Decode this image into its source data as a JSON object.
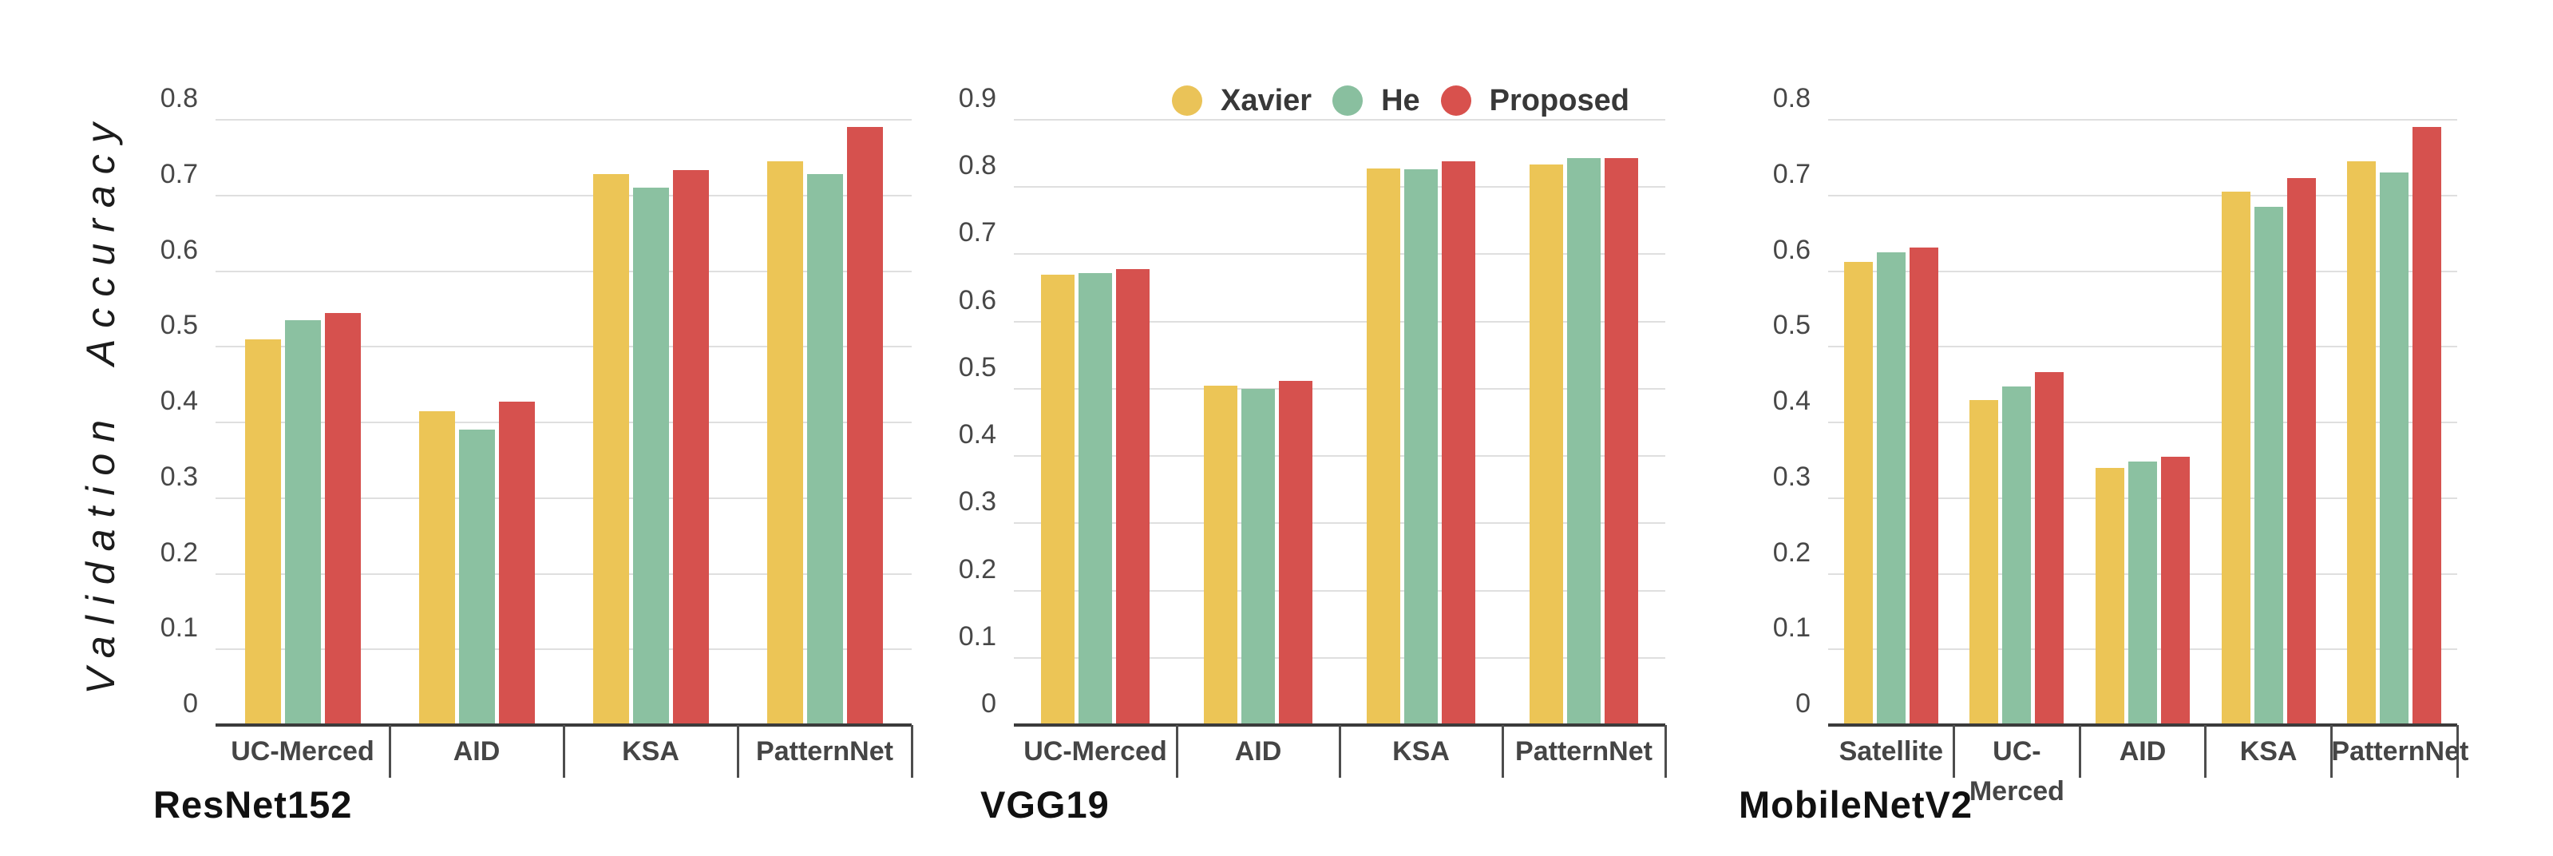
{
  "y_axis_title": "Validation Accuracy",
  "legend": {
    "items": [
      {
        "label": "Xavier",
        "color": "#EAC358"
      },
      {
        "label": "He",
        "color": "#89BF9F"
      },
      {
        "label": "Proposed",
        "color": "#D8514D"
      }
    ]
  },
  "colors": {
    "xavier": "#ECC556",
    "he": "#8BC1A1",
    "proposed": "#D6514E",
    "gridline": "#DFDFDF",
    "axis": "#3B3B3B",
    "tick_text": "#474747",
    "background": "#FFFFFF"
  },
  "chart_data": [
    {
      "type": "bar",
      "title": "ResNet152",
      "categories": [
        "UC-Merced",
        "AID",
        "KSA",
        "PatternNet"
      ],
      "series": [
        {
          "name": "Xavier",
          "color": "#ECC556",
          "values": [
            0.51,
            0.415,
            0.728,
            0.745
          ]
        },
        {
          "name": "He",
          "color": "#8BC1A1",
          "values": [
            0.535,
            0.39,
            0.71,
            0.728
          ]
        },
        {
          "name": "Proposed",
          "color": "#D6514E",
          "values": [
            0.545,
            0.427,
            0.733,
            0.79
          ]
        }
      ],
      "xlabel": "",
      "ylabel": "Validation Accuracy",
      "ylim": [
        0,
        0.8
      ],
      "yticks": [
        "0",
        "0.1",
        "0.2",
        "0.3",
        "0.4",
        "0.5",
        "0.6",
        "0.7",
        "0.8"
      ],
      "grid": true,
      "legend_position": "top-center"
    },
    {
      "type": "bar",
      "title": "VGG19",
      "categories": [
        "UC-Merced",
        "AID",
        "KSA",
        "PatternNet"
      ],
      "series": [
        {
          "name": "Xavier",
          "color": "#ECC556",
          "values": [
            0.67,
            0.505,
            0.828,
            0.833
          ]
        },
        {
          "name": "He",
          "color": "#8BC1A1",
          "values": [
            0.672,
            0.5,
            0.826,
            0.843
          ]
        },
        {
          "name": "Proposed",
          "color": "#D6514E",
          "values": [
            0.678,
            0.512,
            0.838,
            0.843
          ]
        }
      ],
      "xlabel": "",
      "ylabel": "Validation Accuracy",
      "ylim": [
        0,
        0.9
      ],
      "yticks": [
        "0",
        "0.1",
        "0.2",
        "0.3",
        "0.4",
        "0.5",
        "0.6",
        "0.7",
        "0.8",
        "0.9"
      ],
      "grid": true,
      "legend_position": "top-center"
    },
    {
      "type": "bar",
      "title": "MobileNetV2",
      "categories": [
        "Satellite",
        "UC-Merced",
        "AID",
        "KSA",
        "PatternNet"
      ],
      "series": [
        {
          "name": "Xavier",
          "color": "#ECC556",
          "values": [
            0.612,
            0.43,
            0.34,
            0.705,
            0.745
          ]
        },
        {
          "name": "He",
          "color": "#8BC1A1",
          "values": [
            0.625,
            0.447,
            0.348,
            0.685,
            0.73
          ]
        },
        {
          "name": "Proposed",
          "color": "#D6514E",
          "values": [
            0.631,
            0.466,
            0.355,
            0.723,
            0.79
          ]
        }
      ],
      "xlabel": "",
      "ylabel": "Validation Accuracy",
      "ylim": [
        0,
        0.8
      ],
      "yticks": [
        "0",
        "0.1",
        "0.2",
        "0.3",
        "0.4",
        "0.5",
        "0.6",
        "0.7",
        "0.8"
      ],
      "grid": true,
      "legend_position": "top-center"
    }
  ]
}
